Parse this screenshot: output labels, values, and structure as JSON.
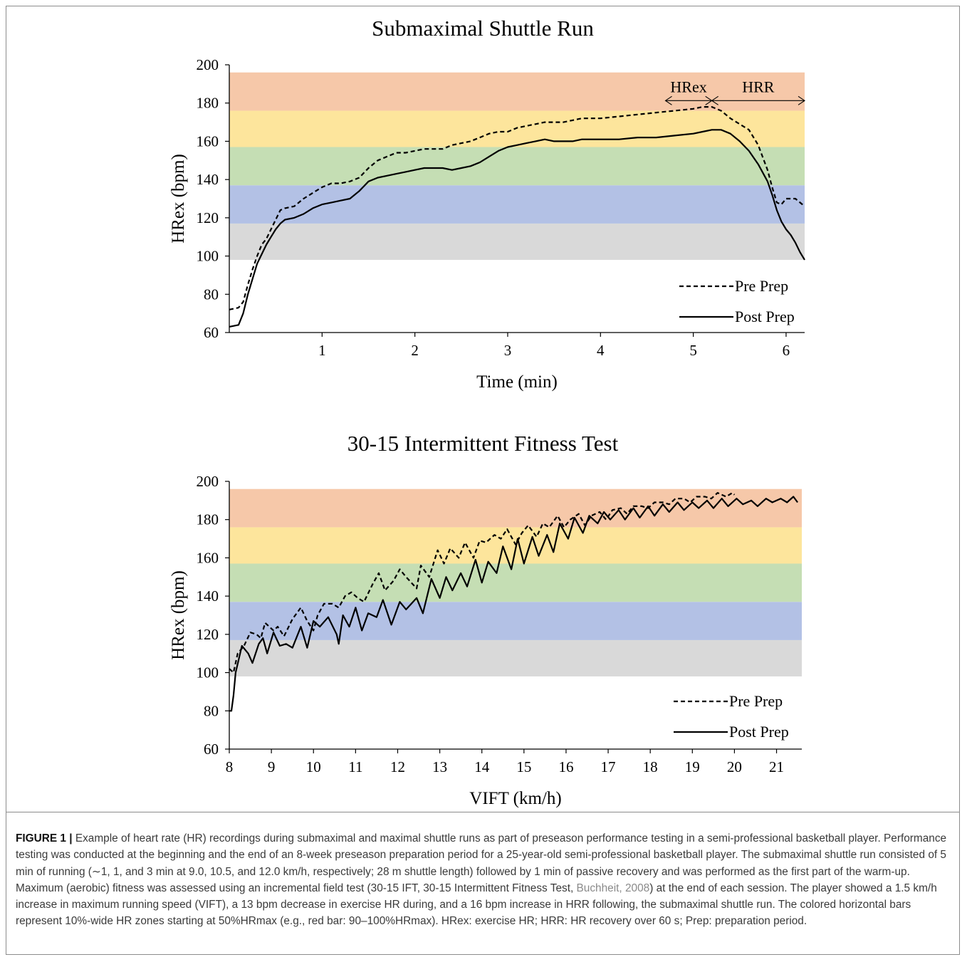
{
  "zone_colors": [
    "#d9d9d9",
    "#b3c1e5",
    "#c5deb4",
    "#fde59c",
    "#f6c8a9"
  ],
  "line_color": "#000000",
  "chart_data": [
    {
      "type": "line",
      "title": "Submaximal Shuttle Run",
      "xlabel": "Time (min)",
      "ylabel": "HRex (bpm)",
      "xlim": [
        0,
        6.2
      ],
      "ylim": [
        60,
        200
      ],
      "xticks": [
        1,
        2,
        3,
        4,
        5,
        6
      ],
      "yticks": [
        60,
        80,
        100,
        120,
        140,
        160,
        180,
        200
      ],
      "zones": [
        [
          98,
          117
        ],
        [
          117,
          137
        ],
        [
          137,
          157
        ],
        [
          157,
          176
        ],
        [
          176,
          196
        ]
      ],
      "annotations": [
        {
          "text": "HRex",
          "x_from": 4.7,
          "x_to": 5.2,
          "y": 182
        },
        {
          "text": "HRR",
          "x_from": 5.2,
          "x_to": 6.2,
          "y": 182
        }
      ],
      "legend": "bottom-right",
      "series": [
        {
          "name": "Pre Prep",
          "style": "dashed",
          "x": [
            0,
            0.1,
            0.15,
            0.2,
            0.25,
            0.3,
            0.35,
            0.4,
            0.45,
            0.5,
            0.55,
            0.6,
            0.7,
            0.8,
            0.9,
            1.0,
            1.1,
            1.2,
            1.3,
            1.4,
            1.5,
            1.6,
            1.7,
            1.8,
            1.9,
            2.0,
            2.1,
            2.2,
            2.3,
            2.4,
            2.5,
            2.6,
            2.7,
            2.8,
            2.9,
            3.0,
            3.1,
            3.2,
            3.3,
            3.4,
            3.5,
            3.6,
            3.7,
            3.8,
            3.9,
            4.0,
            4.2,
            4.4,
            4.6,
            4.8,
            5.0,
            5.1,
            5.2,
            5.3,
            5.4,
            5.5,
            5.6,
            5.7,
            5.8,
            5.85,
            5.9,
            5.95,
            6.0,
            6.05,
            6.1,
            6.15,
            6.2
          ],
          "y": [
            72,
            73,
            76,
            85,
            93,
            100,
            106,
            109,
            114,
            119,
            124,
            125,
            126,
            130,
            133,
            136,
            138,
            138,
            139,
            141,
            146,
            150,
            152,
            154,
            154,
            155,
            156,
            156,
            156,
            158,
            159,
            160,
            162,
            164,
            165,
            165,
            167,
            168,
            169,
            170,
            170,
            170,
            171,
            172,
            172,
            172,
            173,
            174,
            175,
            176,
            177,
            178,
            178,
            176,
            172,
            169,
            166,
            158,
            145,
            136,
            128,
            127,
            130,
            130,
            130,
            128,
            126
          ]
        },
        {
          "name": "Post Prep",
          "style": "solid",
          "x": [
            0,
            0.1,
            0.15,
            0.2,
            0.25,
            0.3,
            0.35,
            0.4,
            0.45,
            0.5,
            0.55,
            0.6,
            0.7,
            0.8,
            0.9,
            1.0,
            1.1,
            1.2,
            1.3,
            1.4,
            1.5,
            1.6,
            1.7,
            1.8,
            1.9,
            2.0,
            2.1,
            2.2,
            2.3,
            2.4,
            2.5,
            2.6,
            2.7,
            2.8,
            2.9,
            3.0,
            3.1,
            3.2,
            3.3,
            3.4,
            3.5,
            3.6,
            3.7,
            3.8,
            3.9,
            4.0,
            4.2,
            4.4,
            4.6,
            4.8,
            5.0,
            5.1,
            5.2,
            5.3,
            5.4,
            5.5,
            5.6,
            5.7,
            5.8,
            5.85,
            5.9,
            5.95,
            6.0,
            6.05,
            6.1,
            6.15,
            6.2
          ],
          "y": [
            63,
            64,
            70,
            80,
            88,
            96,
            101,
            106,
            110,
            114,
            117,
            119,
            120,
            122,
            125,
            127,
            128,
            129,
            130,
            134,
            139,
            141,
            142,
            143,
            144,
            145,
            146,
            146,
            146,
            145,
            146,
            147,
            149,
            152,
            155,
            157,
            158,
            159,
            160,
            161,
            160,
            160,
            160,
            161,
            161,
            161,
            161,
            162,
            162,
            163,
            164,
            165,
            166,
            166,
            164,
            160,
            155,
            148,
            139,
            132,
            124,
            118,
            114,
            111,
            107,
            102,
            98
          ]
        }
      ]
    },
    {
      "type": "line",
      "title": "30-15 Intermittent Fitness Test",
      "xlabel": "VIFT (km/h)",
      "ylabel": "HRex (bpm)",
      "xlim": [
        8,
        21.6
      ],
      "ylim": [
        60,
        200
      ],
      "xticks": [
        8,
        9,
        10,
        11,
        12,
        13,
        14,
        15,
        16,
        17,
        18,
        19,
        20,
        21
      ],
      "yticks": [
        60,
        80,
        100,
        120,
        140,
        160,
        180,
        200
      ],
      "zones": [
        [
          98,
          117
        ],
        [
          117,
          137
        ],
        [
          137,
          157
        ],
        [
          157,
          176
        ],
        [
          176,
          196
        ]
      ],
      "legend": "bottom-right",
      "series": [
        {
          "name": "Pre Prep",
          "style": "dashed",
          "x": [
            8.0,
            8.1,
            8.2,
            8.35,
            8.5,
            8.65,
            8.75,
            8.85,
            8.95,
            9.05,
            9.15,
            9.3,
            9.5,
            9.7,
            9.85,
            10.0,
            10.1,
            10.25,
            10.45,
            10.6,
            10.75,
            10.9,
            11.05,
            11.2,
            11.4,
            11.55,
            11.7,
            11.9,
            12.05,
            12.2,
            12.45,
            12.55,
            12.75,
            12.95,
            13.1,
            13.25,
            13.45,
            13.6,
            13.8,
            13.95,
            14.1,
            14.3,
            14.45,
            14.6,
            14.8,
            14.95,
            15.1,
            15.3,
            15.45,
            15.6,
            15.8,
            15.95,
            16.1,
            16.3,
            16.45,
            16.6,
            16.8,
            16.95,
            17.1,
            17.3,
            17.45,
            17.6,
            17.8,
            17.95,
            18.1,
            18.3,
            18.45,
            18.6,
            18.8,
            18.95,
            19.1,
            19.3,
            19.45,
            19.6,
            19.8,
            19.95,
            20.0
          ],
          "y": [
            102,
            100,
            110,
            114,
            121,
            120,
            118,
            126,
            124,
            122,
            124,
            119,
            128,
            134,
            127,
            122,
            130,
            136,
            136,
            134,
            140,
            142,
            139,
            137,
            146,
            152,
            143,
            148,
            154,
            150,
            144,
            156,
            150,
            164,
            157,
            165,
            160,
            168,
            160,
            169,
            168,
            172,
            170,
            175,
            167,
            173,
            177,
            171,
            178,
            176,
            182,
            176,
            180,
            183,
            177,
            182,
            184,
            180,
            185,
            186,
            183,
            187,
            187,
            186,
            189,
            189,
            188,
            191,
            191,
            189,
            192,
            192,
            191,
            194,
            192,
            194,
            193
          ]
        },
        {
          "name": "Post Prep",
          "style": "solid",
          "x": [
            8.0,
            8.05,
            8.1,
            8.15,
            8.3,
            8.45,
            8.55,
            8.7,
            8.8,
            8.9,
            9.05,
            9.2,
            9.35,
            9.5,
            9.7,
            9.85,
            10.0,
            10.15,
            10.35,
            10.55,
            10.6,
            10.7,
            10.85,
            11.0,
            11.15,
            11.3,
            11.5,
            11.65,
            11.85,
            12.05,
            12.2,
            12.45,
            12.6,
            12.8,
            13.0,
            13.15,
            13.3,
            13.5,
            13.65,
            13.85,
            14.0,
            14.15,
            14.35,
            14.5,
            14.7,
            14.85,
            15.0,
            15.2,
            15.35,
            15.55,
            15.7,
            15.85,
            16.05,
            16.2,
            16.4,
            16.55,
            16.75,
            16.9,
            17.05,
            17.25,
            17.4,
            17.6,
            17.75,
            17.95,
            18.1,
            18.3,
            18.45,
            18.65,
            18.8,
            19.0,
            19.15,
            19.35,
            19.5,
            19.7,
            19.85,
            20.05,
            20.2,
            20.4,
            20.55,
            20.75,
            20.9,
            21.1,
            21.25,
            21.4,
            21.5
          ],
          "y": [
            80,
            80,
            88,
            100,
            114,
            110,
            105,
            115,
            118,
            110,
            121,
            114,
            115,
            113,
            124,
            113,
            127,
            124,
            129,
            120,
            115,
            130,
            124,
            134,
            122,
            131,
            129,
            138,
            125,
            137,
            133,
            139,
            131,
            149,
            139,
            150,
            143,
            152,
            145,
            159,
            147,
            158,
            152,
            166,
            154,
            170,
            157,
            171,
            161,
            172,
            163,
            178,
            170,
            181,
            173,
            182,
            178,
            184,
            180,
            185,
            180,
            186,
            181,
            187,
            182,
            188,
            184,
            189,
            185,
            189,
            186,
            190,
            186,
            191,
            187,
            191,
            188,
            190,
            187,
            191,
            189,
            191,
            189,
            192,
            189
          ]
        }
      ]
    }
  ],
  "caption": {
    "label": "FIGURE 1 |",
    "text_part1": " Example of heart rate (HR) recordings during submaximal and maximal shuttle runs as part of preseason performance testing in a semi-professional basketball player. Performance testing was conducted at the beginning and the end of an 8-week preseason preparation period for a 25-year-old semi-professional basketball player. The submaximal shuttle run consisted of 5 min of running (∼1, 1, and 3 min at 9.0, 10.5, and 12.0 km/h, respectively; 28 m shuttle length) followed by 1 min of passive recovery and was performed as the first part of the warm-up. Maximum (aerobic) fitness was assessed using an incremental field test (30-15 IFT, 30-15 Intermittent Fitness Test, ",
    "citation": "Buchheit, 2008",
    "text_part2": ") at the end of each session. The player showed a 1.5 km/h increase in maximum running speed (VIFT), a 13 bpm decrease in exercise HR during, and a 16 bpm increase in HRR following, the submaximal shuttle run. The colored horizontal bars represent 10%-wide HR zones starting at 50%HRmax (e.g., red bar: 90–100%HRmax). HRex: exercise HR; HRR: HR recovery over 60 s; Prep: preparation period."
  }
}
